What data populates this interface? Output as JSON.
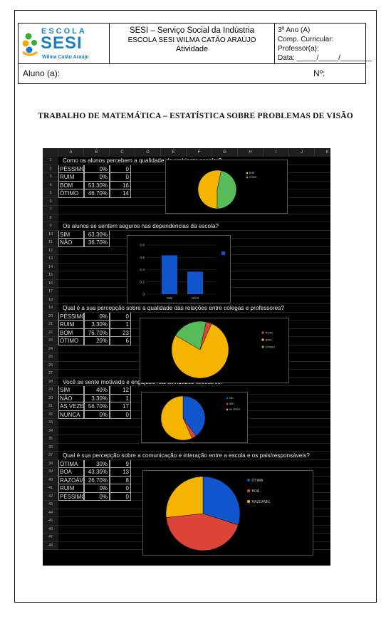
{
  "header": {
    "logo_top": "ESCOLA",
    "logo_main": "SESI",
    "logo_sub": "Wilma Catão Araújo",
    "line1": "SESI – Serviço Social da Indústria",
    "line2": "ESCOLA SESI WILMA CATÃO ARAÚJO",
    "line3": "Atividade",
    "right": [
      "3º Ano (A)",
      "Comp. Curricular:",
      "Professor(a):",
      "Data: _____/_____/________"
    ]
  },
  "aluno_label": "Aluno (a):",
  "numero_label": "Nº:",
  "title": "TRABALHO DE MATEMÁTICA – ESTATÍSTICA SOBRE PROBLEMAS DE VISÃO",
  "sheet": {
    "columns": [
      "A",
      "B",
      "C",
      "D",
      "E",
      "F",
      "G",
      "H",
      "I",
      "J",
      "K"
    ],
    "rows": [
      "1",
      "2",
      "3",
      "4",
      "5",
      "6",
      "7",
      "8",
      "9",
      "10",
      "11",
      "12",
      "13",
      "14",
      "15",
      "16",
      "17",
      "18",
      "19",
      "20",
      "21",
      "22",
      "23",
      "24",
      "25",
      "26",
      "27",
      "28",
      "29",
      "30",
      "31",
      "32",
      "33",
      "34",
      "35",
      "36",
      "37",
      "38",
      "39",
      "40",
      "41",
      "42",
      "43",
      "44",
      "45",
      "46",
      "47",
      "48"
    ],
    "sections": [
      {
        "question": "Como os alunos percebem a qualidade do ambiente escolar?",
        "table": [
          [
            "PÉSSIMO",
            "0%",
            "0"
          ],
          [
            "RUIM",
            "0%",
            "0"
          ],
          [
            "BOM",
            "53.30%",
            "16"
          ],
          [
            "ÓTIMO",
            "46.70%",
            "14"
          ]
        ]
      },
      {
        "question": "Os alunos se sentem seguros nas dependencias da escola?",
        "table": [
          [
            "SIM",
            "63.30%",
            ""
          ],
          [
            "NÃO",
            "36.70%",
            ""
          ]
        ]
      },
      {
        "question": "Qual é a sua percepção sobre a qualidade das relações entre colegas e professores?",
        "table": [
          [
            "PÉSSIMO",
            "0%",
            "0"
          ],
          [
            "RUIM",
            "3.30%",
            "1"
          ],
          [
            "BOM",
            "76.70%",
            "23"
          ],
          [
            "ÓTIMO",
            "20%",
            "6"
          ]
        ]
      },
      {
        "question": "Você se sente motivado e engajado nas atividades escolares?",
        "table": [
          [
            "SIM",
            "40%",
            "12"
          ],
          [
            "NÃO",
            "3.30%",
            "1"
          ],
          [
            "AS VEZES",
            "56.70%",
            "17"
          ],
          [
            "NUNCA",
            "0%",
            "0"
          ]
        ]
      },
      {
        "question": "Qual é sua percepção sobre a comunicação e interação entre a escola e os pais/responsáveis?",
        "table": [
          [
            "ÓTIMA",
            "30%",
            "9"
          ],
          [
            "BOA",
            "43.30%",
            "13"
          ],
          [
            "RAZOÁVEL",
            "26.70%",
            "8"
          ],
          [
            "RUIM",
            "0%",
            "0"
          ],
          [
            "PÉSSIMO",
            "0%",
            "0"
          ]
        ]
      }
    ]
  },
  "chart_data": [
    {
      "type": "pie",
      "categories": [
        "BOM",
        "ÓTIMO"
      ],
      "values": [
        53.3,
        46.7
      ],
      "colors": [
        "#f4b400",
        "#57bb5a"
      ],
      "legend": "top-right"
    },
    {
      "type": "bar",
      "categories": [
        "SIM",
        "NÃO"
      ],
      "values": [
        0.633,
        0.367
      ],
      "ylim": [
        0,
        0.8
      ],
      "yticks": [
        "0",
        "0.2",
        "0.4",
        "0.6",
        "0.8"
      ],
      "colors": [
        "#1155cc"
      ],
      "grid": true,
      "legend": "top-right"
    },
    {
      "type": "pie",
      "categories": [
        "RUIM",
        "BOM",
        "ÓTIMO"
      ],
      "values": [
        3.3,
        76.7,
        20
      ],
      "colors": [
        "#db4437",
        "#f4b400",
        "#57bb5a"
      ],
      "legend": "right"
    },
    {
      "type": "pie",
      "categories": [
        "SIM",
        "NÃO",
        "AS VEZES"
      ],
      "values": [
        40,
        3.3,
        56.7
      ],
      "colors": [
        "#1155cc",
        "#db4437",
        "#f4b400"
      ],
      "legend": "top-right"
    },
    {
      "type": "pie",
      "categories": [
        "ÓTIMA",
        "BOA",
        "RAZOÁVEL"
      ],
      "values": [
        30,
        43.3,
        26.7
      ],
      "colors": [
        "#1155cc",
        "#db4437",
        "#f4b400"
      ],
      "legend": "right"
    }
  ]
}
